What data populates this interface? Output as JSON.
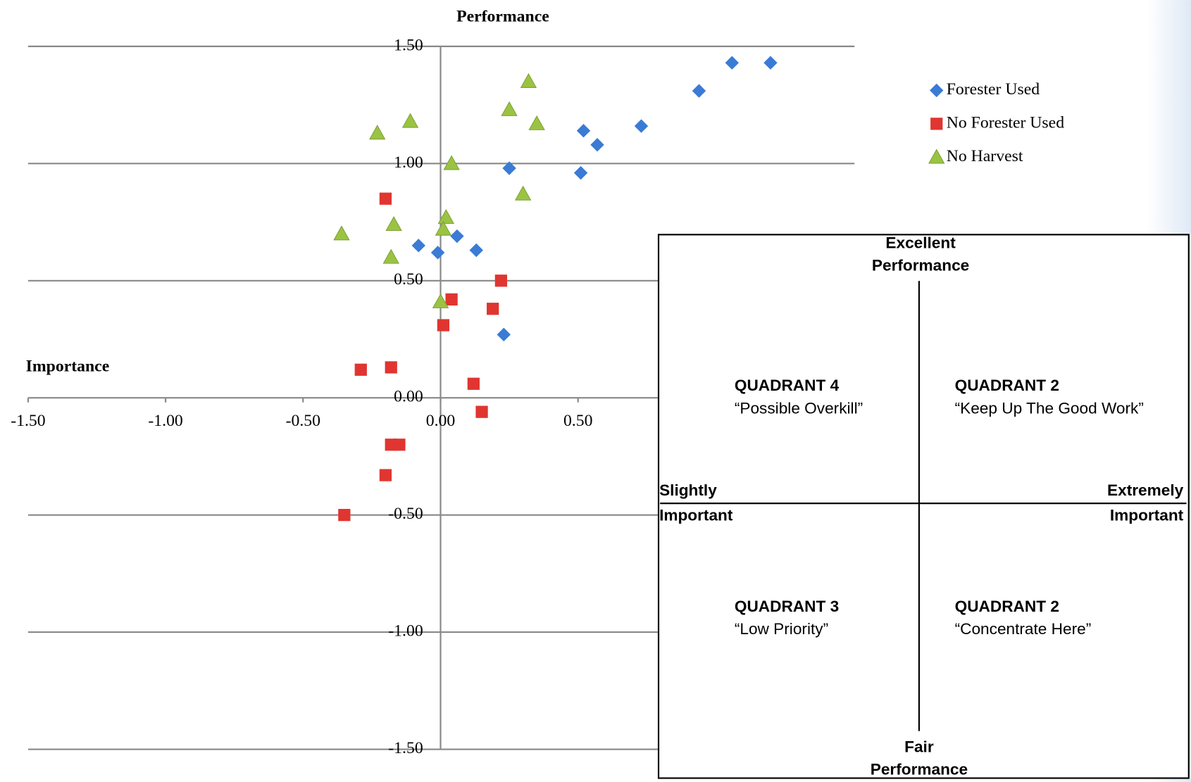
{
  "chart_data": {
    "type": "scatter",
    "title": "Performance",
    "x_label": "Importance",
    "xlim": [
      -1.5,
      1.5
    ],
    "ylim": [
      -1.5,
      1.5
    ],
    "xticks": [
      {
        "value": -1.5,
        "label": "-1.50"
      },
      {
        "value": -1,
        "label": "-1.00"
      },
      {
        "value": -0.5,
        "label": "-0.50"
      },
      {
        "value": 0,
        "label": "0.00"
      },
      {
        "value": 0.5,
        "label": "0.50"
      }
    ],
    "yticks": [
      {
        "value": -1.5,
        "label": "-1.50"
      },
      {
        "value": -1,
        "label": "-1.00"
      },
      {
        "value": -0.5,
        "label": "-0.50"
      },
      {
        "value": 0,
        "label": "0.00"
      },
      {
        "value": 0.5,
        "label": "0.50"
      },
      {
        "value": 1,
        "label": "1.00"
      },
      {
        "value": 1.5,
        "label": "1.50"
      }
    ],
    "grid": true,
    "legend": "upper right",
    "series": [
      {
        "name": "Forester Used",
        "color": "#3a7bd5",
        "marker": "diamond",
        "x": [
          1.2,
          1.06,
          0.94,
          0.73,
          0.52,
          0.57,
          0.25,
          0.51,
          -0.08,
          -0.01,
          0.06,
          0.13,
          0.23
        ],
        "y": [
          1.43,
          1.43,
          1.31,
          1.16,
          1.14,
          1.08,
          0.98,
          0.96,
          0.65,
          0.62,
          0.69,
          0.63,
          0.27
        ]
      },
      {
        "name": "No Forester Used",
        "color": "#e03530",
        "marker": "square",
        "x": [
          -0.2,
          0.22,
          0.04,
          0.19,
          0.01,
          -0.29,
          -0.18,
          0.12,
          0.15,
          -0.18,
          -0.15,
          -0.2,
          -0.35
        ],
        "y": [
          0.85,
          0.5,
          0.42,
          0.38,
          0.31,
          0.12,
          0.13,
          0.06,
          -0.06,
          -0.2,
          -0.2,
          -0.33,
          -0.5
        ]
      },
      {
        "name": "No Harvest",
        "color": "#9bc342",
        "marker": "triangle",
        "x": [
          0.32,
          0.25,
          0.35,
          -0.11,
          -0.23,
          0.04,
          0.3,
          0.02,
          0.01,
          -0.17,
          -0.36,
          -0.18,
          0.0
        ],
        "y": [
          1.35,
          1.23,
          1.17,
          1.18,
          1.13,
          1.0,
          0.87,
          0.77,
          0.72,
          0.74,
          0.7,
          0.6,
          0.41
        ]
      }
    ]
  },
  "inset": {
    "top": [
      "Excellent",
      "Performance"
    ],
    "bottom": [
      "Fair",
      "Performance"
    ],
    "left": [
      "Slightly",
      "Important"
    ],
    "right": [
      "Extremely",
      "Important"
    ],
    "quadrants": [
      {
        "title": "QUADRANT 4",
        "subtitle": "“Possible Overkill”"
      },
      {
        "title": "QUADRANT 2",
        "subtitle": "“Keep Up The Good Work”"
      },
      {
        "title": "QUADRANT 3",
        "subtitle": "“Low Priority”"
      },
      {
        "title": "QUADRANT 2",
        "subtitle": "“Concentrate Here”"
      }
    ]
  }
}
